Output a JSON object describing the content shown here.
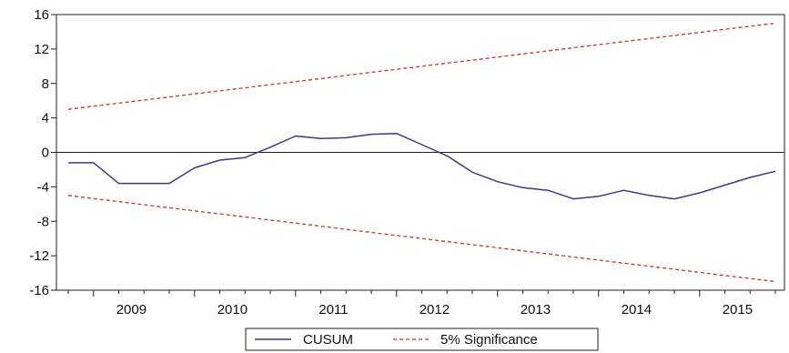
{
  "chart_data": {
    "type": "line",
    "x": [
      "2008-10",
      "2009-01",
      "2009-04",
      "2009-07",
      "2009-10",
      "2010-01",
      "2010-04",
      "2010-07",
      "2010-10",
      "2011-01",
      "2011-04",
      "2011-07",
      "2011-10",
      "2012-01",
      "2012-04",
      "2012-07",
      "2012-10",
      "2013-01",
      "2013-04",
      "2013-07",
      "2013-10",
      "2014-01",
      "2014-04",
      "2014-07",
      "2014-10",
      "2015-01",
      "2015-04",
      "2015-07",
      "2015-10"
    ],
    "series": [
      {
        "name": "CUSUM",
        "color": "#3a3a8c",
        "style": "solid",
        "values": [
          -1.2,
          -1.2,
          -3.6,
          -3.6,
          -3.6,
          -1.8,
          -0.9,
          -0.6,
          0.6,
          1.9,
          1.6,
          1.7,
          2.1,
          2.2,
          0.9,
          -0.4,
          -2.3,
          -3.4,
          -4.1,
          -4.4,
          -5.4,
          -5.1,
          -4.4,
          -5.0,
          -5.4,
          -4.7,
          -3.8,
          -2.9,
          -2.2
        ]
      },
      {
        "name": "5% Significance",
        "color": "#cc3333",
        "style": "dashed",
        "values": [
          5.0,
          5.36,
          5.71,
          6.07,
          6.43,
          6.79,
          7.14,
          7.5,
          7.86,
          8.21,
          8.57,
          8.93,
          9.29,
          9.64,
          10.0,
          10.36,
          10.71,
          11.07,
          11.43,
          11.79,
          12.14,
          12.5,
          12.86,
          13.21,
          13.57,
          13.93,
          14.29,
          14.64,
          15.0
        ]
      },
      {
        "name": "5% Significance lower",
        "color": "#cc3333",
        "style": "dashed",
        "values": [
          -5.0,
          -5.36,
          -5.71,
          -6.07,
          -6.43,
          -6.79,
          -7.14,
          -7.5,
          -7.86,
          -8.21,
          -8.57,
          -8.93,
          -9.29,
          -9.64,
          -10.0,
          -10.36,
          -10.71,
          -11.07,
          -11.43,
          -11.79,
          -12.14,
          -12.5,
          -12.86,
          -13.21,
          -13.57,
          -13.93,
          -14.29,
          -14.64,
          -15.0
        ]
      }
    ],
    "xticks": [
      "2009",
      "2010",
      "2011",
      "2012",
      "2013",
      "2014",
      "2015"
    ],
    "yticks": [
      "16",
      "12",
      "8",
      "4",
      "0",
      "-4",
      "-8",
      "-12",
      "-16"
    ],
    "ylim": [
      -16,
      16
    ],
    "zero_line": true,
    "grid": false,
    "legend": {
      "placement": "bottom-center",
      "entries": [
        "CUSUM",
        "5% Significance"
      ]
    }
  }
}
